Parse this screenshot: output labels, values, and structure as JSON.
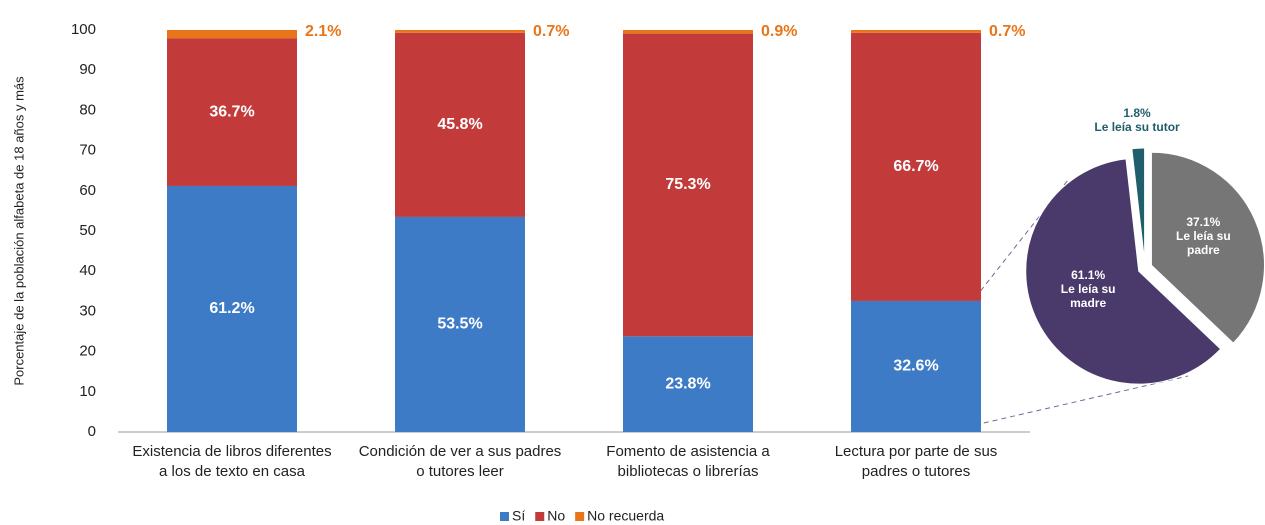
{
  "chart_data": [
    {
      "type": "bar",
      "stacked": true,
      "ylabel": "Porcentaje de la población alfabeta de 18 años y más",
      "categories": [
        "Existencia de libros diferentes a los de texto en casa",
        "Condición de ver a sus padres o tutores leer",
        "Fomento de asistencia a bibliotecas o librerías",
        "Lectura por parte de sus padres o tutores"
      ],
      "series": [
        {
          "name": "Sí",
          "color": "#3d7bc7",
          "values": [
            61.2,
            53.5,
            23.8,
            32.6
          ],
          "value_labels": [
            "61.2%",
            "53.5%",
            "23.8%",
            "32.6%"
          ]
        },
        {
          "name": "No",
          "color": "#c23a3a",
          "values": [
            36.7,
            45.8,
            75.3,
            66.7
          ],
          "value_labels": [
            "36.7%",
            "45.8%",
            "75.3%",
            "66.7%"
          ]
        },
        {
          "name": "No recuerda",
          "color": "#e8751a",
          "values": [
            2.1,
            0.7,
            0.9,
            0.7
          ],
          "value_labels": [
            "2.1%",
            "0.7%",
            "0.9%",
            "0.7%"
          ]
        }
      ],
      "ylim": [
        0,
        100
      ],
      "yticks": [
        0,
        10,
        20,
        30,
        40,
        50,
        60,
        70,
        80,
        90,
        100
      ],
      "grid": false,
      "legend": "bottom"
    },
    {
      "type": "pie",
      "labels": [
        "Le leía su padre",
        "Le leía su madre",
        "Le leía su tutor"
      ],
      "values": [
        37.1,
        61.1,
        1.8
      ],
      "value_labels": [
        "37.1%",
        "61.1%",
        "1.8%"
      ],
      "colors": [
        "#767676",
        "#4a3a6c",
        "#1f5e6a"
      ]
    }
  ]
}
